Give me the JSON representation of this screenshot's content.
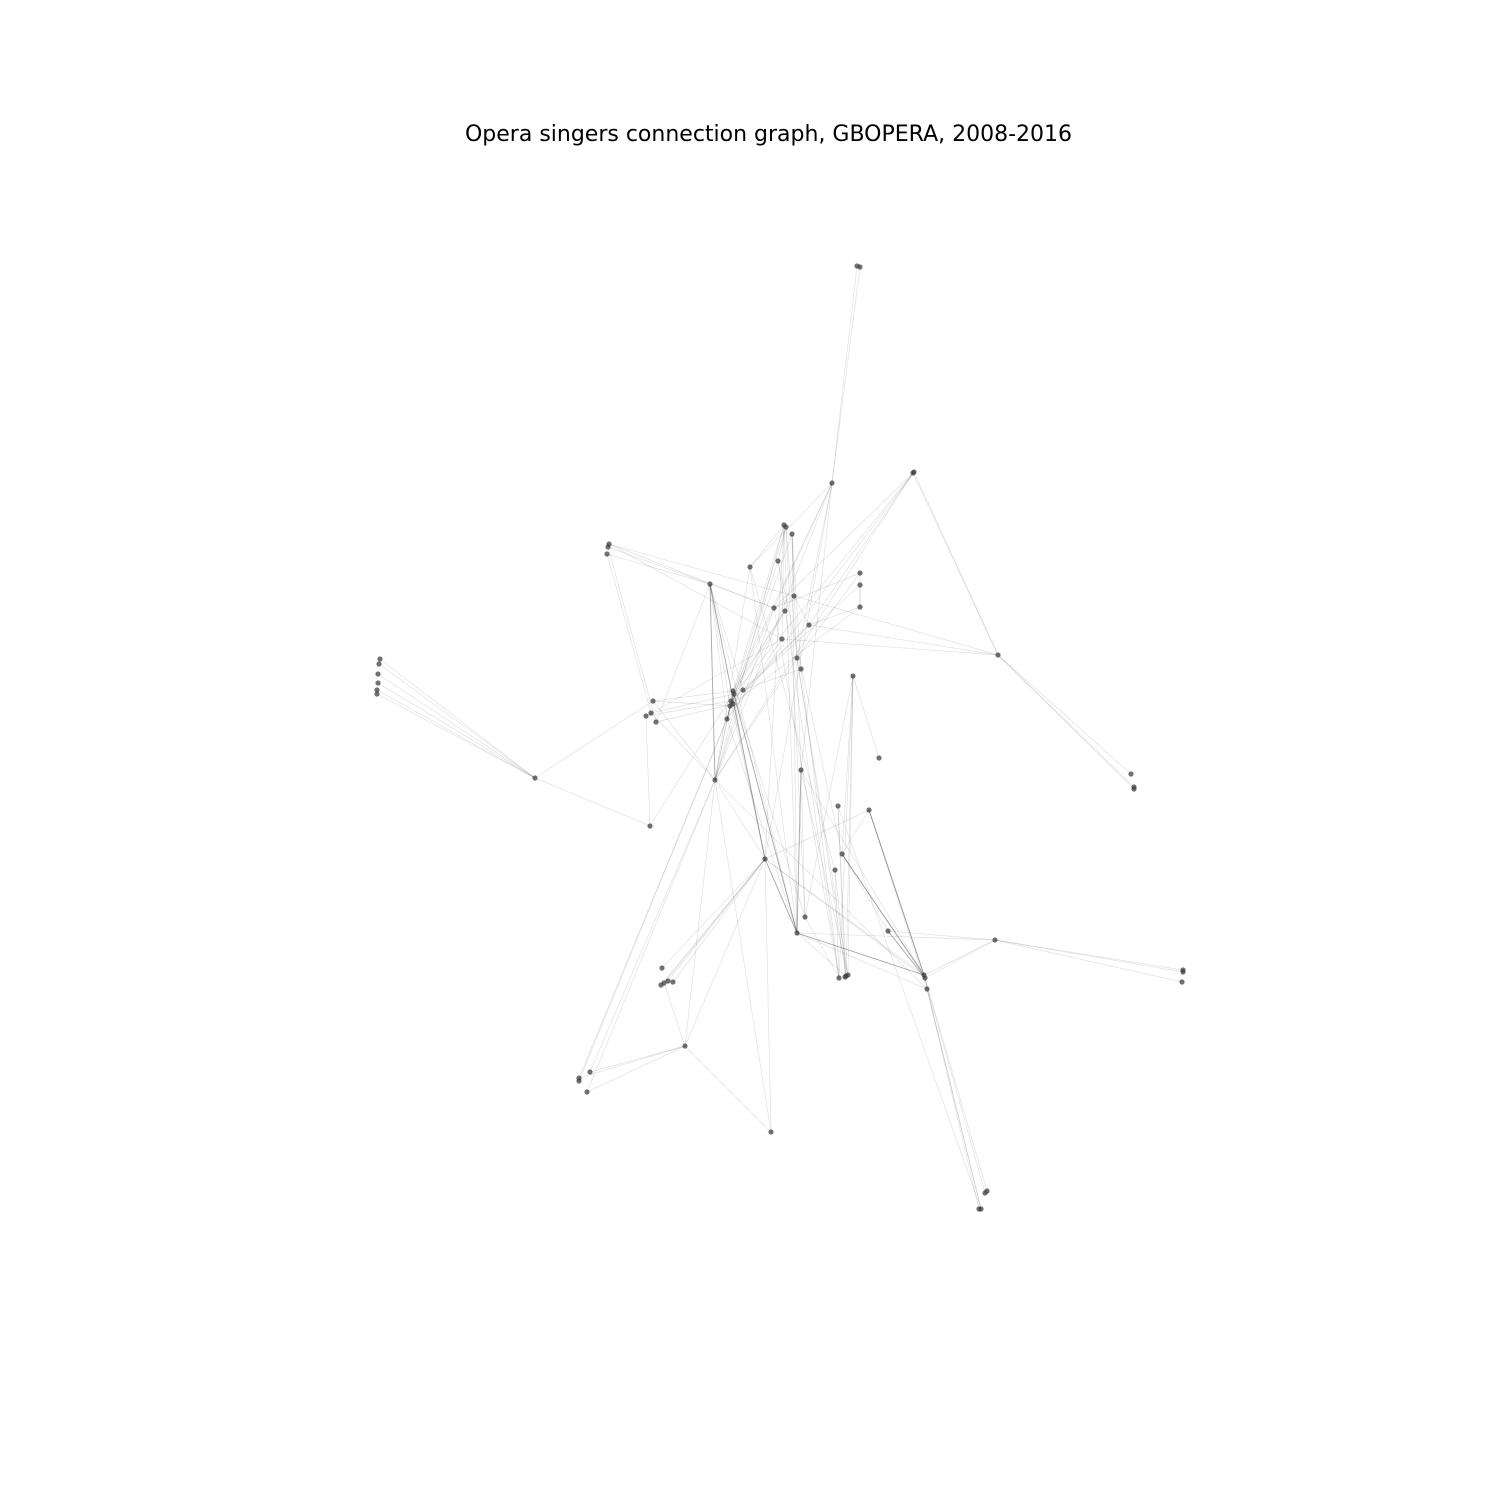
{
  "figure": {
    "title": "Opera singers connection graph, GBOPERA, 2008-2016"
  },
  "colors": {
    "node": "#3a3a3a",
    "edge": "#000000",
    "background": "#ffffff"
  },
  "graph": {
    "nodes": 88,
    "edges": 172
  }
}
